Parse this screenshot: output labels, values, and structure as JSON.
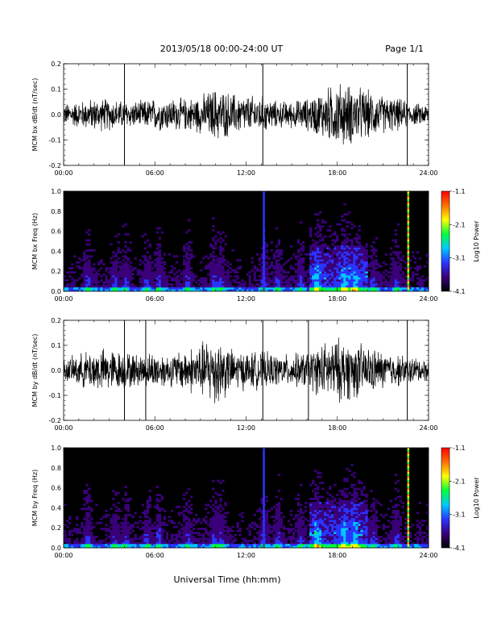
{
  "header": {
    "title": "2013/05/18  00:00-24:00 UT",
    "page": "Page 1/1"
  },
  "footer": {
    "xlabel": "Universal Time (hh:mm)"
  },
  "chart_data": [
    {
      "type": "line",
      "ylabel": "MCM bx dB/dt (nT/sec)",
      "xlim": [
        0,
        24
      ],
      "ylim": [
        -0.2,
        0.2
      ],
      "x_tick_labels": [
        "00:00",
        "06:00",
        "12:00",
        "18:00",
        "24:00"
      ],
      "y_tick_labels": [
        "0.2",
        "0.1",
        "0.0",
        "-0.1",
        "-0.2"
      ],
      "envelope_hours": [
        0,
        1,
        2,
        3,
        4,
        5,
        6,
        7,
        8,
        9,
        10,
        11,
        12,
        13,
        14,
        15,
        16,
        17,
        18,
        19,
        20,
        21,
        22,
        23,
        24
      ],
      "envelope_amplitude": [
        0.04,
        0.05,
        0.06,
        0.06,
        0.05,
        0.05,
        0.06,
        0.06,
        0.06,
        0.07,
        0.1,
        0.08,
        0.07,
        0.07,
        0.05,
        0.05,
        0.06,
        0.09,
        0.12,
        0.11,
        0.09,
        0.07,
        0.06,
        0.04,
        0.04
      ],
      "spikes_hours": [
        4.0,
        13.1,
        22.6
      ]
    },
    {
      "type": "heatmap",
      "ylabel": "MCM bx Freq (Hz)",
      "xlim": [
        0,
        24
      ],
      "ylim": [
        0,
        1.0
      ],
      "x_tick_labels": [
        "00:00",
        "06:00",
        "12:00",
        "18:00",
        "24:00"
      ],
      "y_tick_labels": [
        "1.0",
        "0.8",
        "0.6",
        "0.4",
        "0.2",
        "0.0"
      ],
      "colorbar": {
        "label": "Log10 Power",
        "range": [
          -4.1,
          -1.1
        ],
        "tick_labels": [
          "-1.1",
          "-2.1",
          "-3.1",
          "-4.1"
        ]
      },
      "colors": [
        "#000000",
        "#3a007a",
        "#2a35ff",
        "#00c8ff",
        "#00ff3a",
        "#ffff00",
        "#ff7000",
        "#ff0000"
      ]
    },
    {
      "type": "line",
      "ylabel": "MCM by dB/dt (nT/sec)",
      "xlim": [
        0,
        24
      ],
      "ylim": [
        -0.2,
        0.2
      ],
      "x_tick_labels": [
        "00:00",
        "06:00",
        "12:00",
        "18:00",
        "24:00"
      ],
      "y_tick_labels": [
        "0.2",
        "0.1",
        "0.0",
        "-0.1",
        "-0.2"
      ],
      "envelope_hours": [
        0,
        1,
        2,
        3,
        4,
        5,
        6,
        7,
        8,
        9,
        10,
        11,
        12,
        13,
        14,
        15,
        16,
        17,
        18,
        19,
        20,
        21,
        22,
        23,
        24
      ],
      "envelope_amplitude": [
        0.04,
        0.06,
        0.08,
        0.08,
        0.07,
        0.06,
        0.07,
        0.06,
        0.08,
        0.1,
        0.14,
        0.08,
        0.07,
        0.07,
        0.06,
        0.06,
        0.07,
        0.1,
        0.12,
        0.11,
        0.09,
        0.07,
        0.06,
        0.05,
        0.04
      ],
      "spikes_hours": [
        4.0,
        5.4,
        13.1,
        16.1,
        22.6
      ]
    },
    {
      "type": "heatmap",
      "ylabel": "MCM by Freq (Hz)",
      "xlim": [
        0,
        24
      ],
      "ylim": [
        0,
        1.0
      ],
      "x_tick_labels": [
        "00:00",
        "06:00",
        "12:00",
        "18:00",
        "24:00"
      ],
      "y_tick_labels": [
        "1.0",
        "0.8",
        "0.6",
        "0.4",
        "0.2",
        "0.0"
      ],
      "colorbar": {
        "label": "Log10 Power",
        "range": [
          -4.1,
          -1.1
        ],
        "tick_labels": [
          "-1.1",
          "-2.1",
          "-3.1",
          "-4.1"
        ]
      },
      "colors": [
        "#000000",
        "#3a007a",
        "#2a35ff",
        "#00c8ff",
        "#00ff3a",
        "#ffff00",
        "#ff7000",
        "#ff0000"
      ]
    }
  ]
}
